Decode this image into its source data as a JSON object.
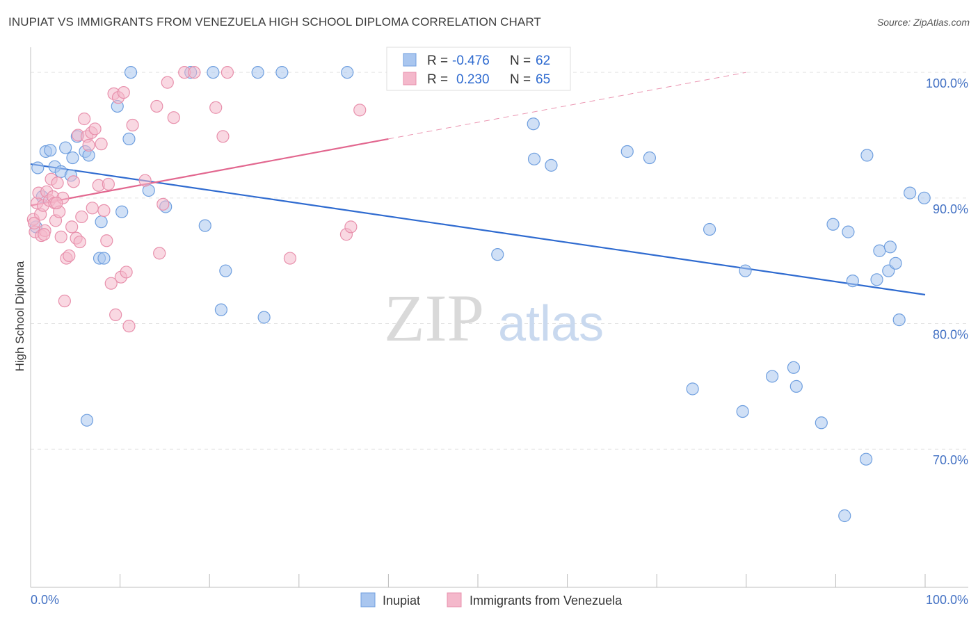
{
  "header": {
    "title": "INUPIAT VS IMMIGRANTS FROM VENEZUELA HIGH SCHOOL DIPLOMA CORRELATION CHART",
    "source": "Source: ZipAtlas.com"
  },
  "watermark": {
    "zip": "ZIP",
    "atlas": "atlas"
  },
  "legend": {
    "r_label": "R =",
    "n_label": "N =",
    "series": [
      {
        "r": "-0.476",
        "n": "62",
        "color": "#a9c6ef"
      },
      {
        "r": "0.230",
        "n": "65",
        "color": "#f4b8cb"
      }
    ]
  },
  "bottom_legend": [
    "Inupiat",
    "Immigrants from Venezuela"
  ],
  "colors": {
    "blue_fill": "#a9c6ef",
    "blue_line": "#2f6bd0",
    "pink_fill": "#f4b8cb",
    "pink_line": "#e2678f",
    "tick_label": "#4472c4"
  },
  "chart_data": {
    "type": "scatter",
    "title": "INUPIAT VS IMMIGRANTS FROM VENEZUELA HIGH SCHOOL DIPLOMA CORRELATION CHART",
    "xlabel": "",
    "ylabel": "High School Diploma",
    "xlim": [
      0,
      100
    ],
    "ylim": [
      59,
      102
    ],
    "x_tick_labels": [
      "0.0%",
      "100.0%"
    ],
    "y_ticks": [
      {
        "value": 70,
        "label": "70.0%"
      },
      {
        "value": 80,
        "label": "80.0%"
      },
      {
        "value": 90,
        "label": "90.0%"
      },
      {
        "value": 100,
        "label": "100.0%"
      }
    ],
    "grid": true,
    "legend_position": "top-center",
    "series": [
      {
        "name": "Inupiat",
        "color": "#a9c6ef",
        "stroke": "#6f9fdf",
        "trend": {
          "x": [
            0,
            100
          ],
          "y": [
            92.7,
            82.3
          ],
          "dashed_extension": false
        },
        "points": [
          [
            0.6,
            87.7
          ],
          [
            0.8,
            92.4
          ],
          [
            1.3,
            90.1
          ],
          [
            1.7,
            93.7
          ],
          [
            2.2,
            93.8
          ],
          [
            2.7,
            92.5
          ],
          [
            3.4,
            92.1
          ],
          [
            3.9,
            94.0
          ],
          [
            4.5,
            91.8
          ],
          [
            4.7,
            93.2
          ],
          [
            5.2,
            94.9
          ],
          [
            6.1,
            93.7
          ],
          [
            6.5,
            93.4
          ],
          [
            7.7,
            85.2
          ],
          [
            7.9,
            88.1
          ],
          [
            8.2,
            85.2
          ],
          [
            9.7,
            97.3
          ],
          [
            10.2,
            88.9
          ],
          [
            11.0,
            94.7
          ],
          [
            11.2,
            100.0
          ],
          [
            13.2,
            90.6
          ],
          [
            15.1,
            89.3
          ],
          [
            17.9,
            100.0
          ],
          [
            19.5,
            87.8
          ],
          [
            20.4,
            100.0
          ],
          [
            21.3,
            81.1
          ],
          [
            21.8,
            84.2
          ],
          [
            25.4,
            100.0
          ],
          [
            26.1,
            80.5
          ],
          [
            28.1,
            100.0
          ],
          [
            35.4,
            100.0
          ],
          [
            47.3,
            100.0
          ],
          [
            52.2,
            85.5
          ],
          [
            56.2,
            95.9
          ],
          [
            56.3,
            93.1
          ],
          [
            58.2,
            92.6
          ],
          [
            66.7,
            93.7
          ],
          [
            69.2,
            93.2
          ],
          [
            74.0,
            74.8
          ],
          [
            75.9,
            87.5
          ],
          [
            79.6,
            73.0
          ],
          [
            79.9,
            84.2
          ],
          [
            82.9,
            75.8
          ],
          [
            85.3,
            76.5
          ],
          [
            85.6,
            75.0
          ],
          [
            88.4,
            72.1
          ],
          [
            89.7,
            87.9
          ],
          [
            91.0,
            64.7
          ],
          [
            91.4,
            87.3
          ],
          [
            91.9,
            83.4
          ],
          [
            93.4,
            69.2
          ],
          [
            93.5,
            93.4
          ],
          [
            94.6,
            83.5
          ],
          [
            94.9,
            85.8
          ],
          [
            95.9,
            84.2
          ],
          [
            96.1,
            86.1
          ],
          [
            96.7,
            84.8
          ],
          [
            97.1,
            80.3
          ],
          [
            98.3,
            90.4
          ],
          [
            99.9,
            90.0
          ],
          [
            6.3,
            72.3
          ],
          [
            50.1,
            100.2
          ]
        ]
      },
      {
        "name": "Immigrants from Venezuela",
        "color": "#f4b8cb",
        "stroke": "#e890ac",
        "trend": {
          "x": [
            0,
            40
          ],
          "y": [
            89.4,
            94.7
          ],
          "dashed_to": [
            80,
            100
          ]
        },
        "points": [
          [
            0.3,
            88.3
          ],
          [
            0.5,
            87.3
          ],
          [
            0.7,
            89.6
          ],
          [
            0.9,
            90.4
          ],
          [
            1.1,
            88.7
          ],
          [
            1.2,
            87.0
          ],
          [
            1.4,
            89.4
          ],
          [
            1.6,
            87.4
          ],
          [
            1.8,
            90.5
          ],
          [
            2.1,
            89.8
          ],
          [
            2.3,
            91.5
          ],
          [
            2.5,
            90.1
          ],
          [
            2.7,
            89.6
          ],
          [
            2.8,
            88.2
          ],
          [
            3.0,
            91.2
          ],
          [
            3.2,
            88.9
          ],
          [
            3.4,
            86.9
          ],
          [
            3.6,
            90.0
          ],
          [
            3.8,
            81.8
          ],
          [
            4.0,
            85.2
          ],
          [
            4.3,
            85.4
          ],
          [
            4.6,
            87.7
          ],
          [
            4.8,
            91.3
          ],
          [
            5.1,
            86.8
          ],
          [
            5.3,
            95.0
          ],
          [
            5.5,
            86.5
          ],
          [
            5.7,
            88.5
          ],
          [
            6.0,
            96.3
          ],
          [
            6.3,
            94.9
          ],
          [
            6.5,
            94.2
          ],
          [
            6.8,
            95.2
          ],
          [
            7.2,
            95.5
          ],
          [
            7.6,
            91.0
          ],
          [
            7.9,
            94.3
          ],
          [
            8.2,
            89.0
          ],
          [
            8.5,
            86.6
          ],
          [
            8.7,
            91.1
          ],
          [
            9.0,
            83.2
          ],
          [
            9.3,
            98.3
          ],
          [
            9.5,
            80.7
          ],
          [
            9.8,
            98.0
          ],
          [
            10.1,
            83.7
          ],
          [
            10.4,
            98.4
          ],
          [
            10.7,
            84.1
          ],
          [
            11.0,
            79.8
          ],
          [
            11.4,
            95.8
          ],
          [
            12.8,
            91.4
          ],
          [
            14.1,
            97.3
          ],
          [
            14.4,
            85.6
          ],
          [
            14.8,
            89.5
          ],
          [
            15.3,
            99.2
          ],
          [
            16.0,
            96.4
          ],
          [
            17.2,
            100.0
          ],
          [
            18.3,
            100.0
          ],
          [
            20.7,
            97.2
          ],
          [
            21.5,
            94.9
          ],
          [
            22.0,
            100.0
          ],
          [
            29.0,
            85.2
          ],
          [
            35.3,
            87.1
          ],
          [
            35.8,
            87.7
          ],
          [
            36.8,
            97.0
          ],
          [
            1.5,
            87.1
          ],
          [
            2.9,
            89.6
          ],
          [
            6.9,
            89.2
          ],
          [
            0.4,
            88.0
          ]
        ]
      }
    ]
  }
}
